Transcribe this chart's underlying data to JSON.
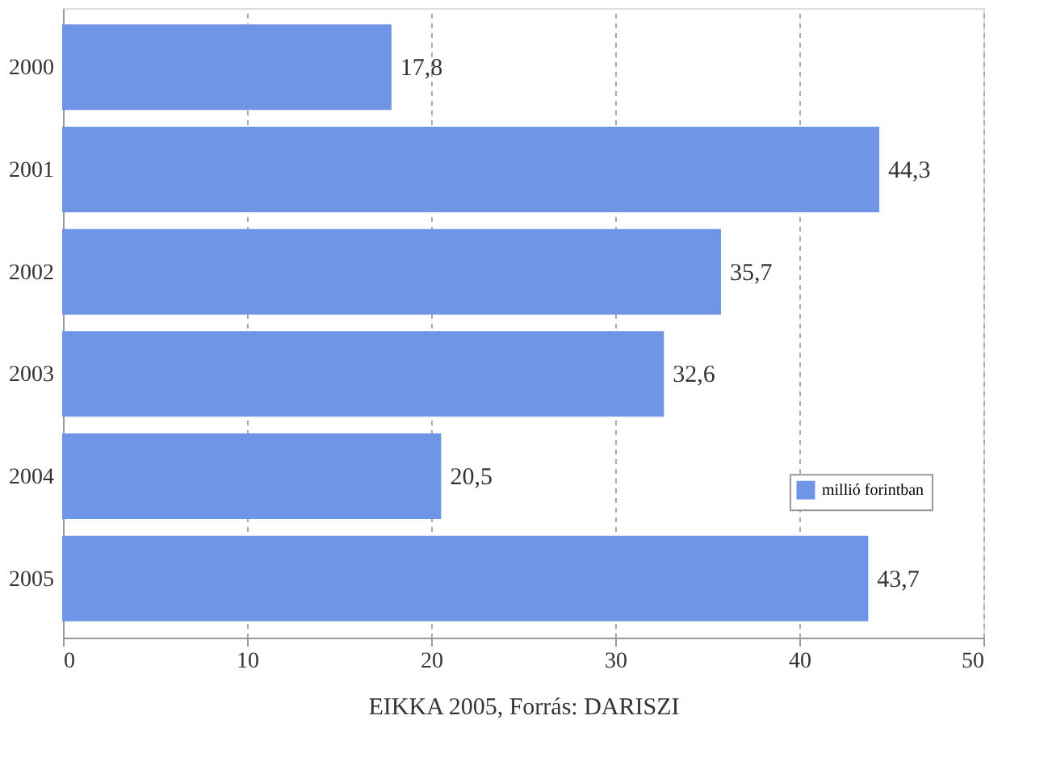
{
  "chart_data": {
    "type": "bar",
    "orientation": "horizontal",
    "categories": [
      "2000",
      "2001",
      "2002",
      "2003",
      "2004",
      "2005"
    ],
    "series": [
      {
        "name": "millió forintban",
        "color": "#6f95e6",
        "values": [
          17.8,
          44.3,
          35.7,
          32.6,
          20.5,
          43.7
        ]
      }
    ],
    "value_labels": [
      "17,8",
      "44,3",
      "35,7",
      "32,6",
      "20,5",
      "43,7"
    ],
    "xlim": [
      0,
      50
    ],
    "xticks": [
      0,
      10,
      20,
      30,
      40,
      50
    ],
    "xlabel": "EIKKA 2005, Forrás: DARISZI",
    "grid": "x",
    "legend": "right"
  }
}
